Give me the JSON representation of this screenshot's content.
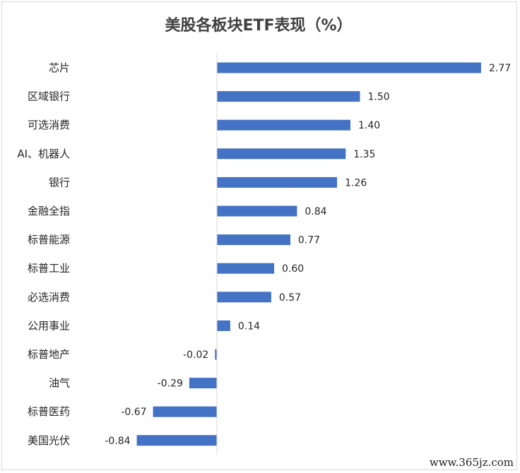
{
  "chart_data": {
    "type": "bar",
    "orientation": "horizontal",
    "title": "美股各板块ETF表现（%）",
    "categories": [
      "芯片",
      "区域银行",
      "可选消费",
      "AI、机器人",
      "银行",
      "金融全指",
      "标普能源",
      "标普工业",
      "必选消费",
      "公用事业",
      "标普地产",
      "油气",
      "标普医药",
      "美国光伏"
    ],
    "values": [
      2.77,
      1.5,
      1.4,
      1.35,
      1.26,
      0.84,
      0.77,
      0.6,
      0.57,
      0.14,
      -0.02,
      -0.29,
      -0.67,
      -0.84
    ],
    "value_labels": [
      "2.77",
      "1.50",
      "1.40",
      "1.35",
      "1.26",
      "0.84",
      "0.77",
      "0.60",
      "0.57",
      "0.14",
      "-0.02",
      "-0.29",
      "-0.67",
      "-0.84"
    ],
    "xlabel": "",
    "ylabel": "",
    "grid": false,
    "legend": "none",
    "bar_color": "#4472c4"
  },
  "watermark": "www.365jz.com"
}
